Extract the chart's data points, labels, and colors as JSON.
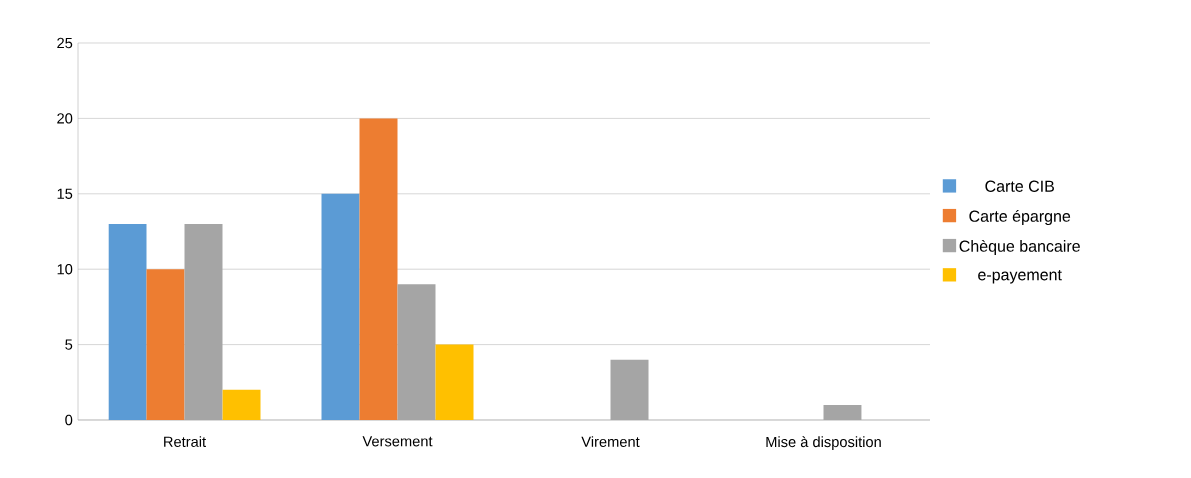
{
  "chart_data": {
    "type": "bar",
    "categories": [
      "Retrait",
      "Versement",
      "Virement",
      "Mise à disposition"
    ],
    "series": [
      {
        "name": "Carte CIB",
        "color": "#5b9bd5",
        "values": [
          13,
          15,
          0,
          0
        ]
      },
      {
        "name": "Carte épargne",
        "color": "#ed7d31",
        "values": [
          10,
          20,
          0,
          0
        ]
      },
      {
        "name": "Chèque bancaire",
        "color": "#a5a5a5",
        "values": [
          13,
          9,
          4,
          1
        ]
      },
      {
        "name": "e-payement",
        "color": "#ffc000",
        "values": [
          2,
          5,
          0,
          0
        ]
      }
    ],
    "ylim": [
      0,
      25
    ],
    "yticks": [
      0,
      5,
      10,
      15,
      20,
      25
    ],
    "grid": "y",
    "legend": "right"
  }
}
